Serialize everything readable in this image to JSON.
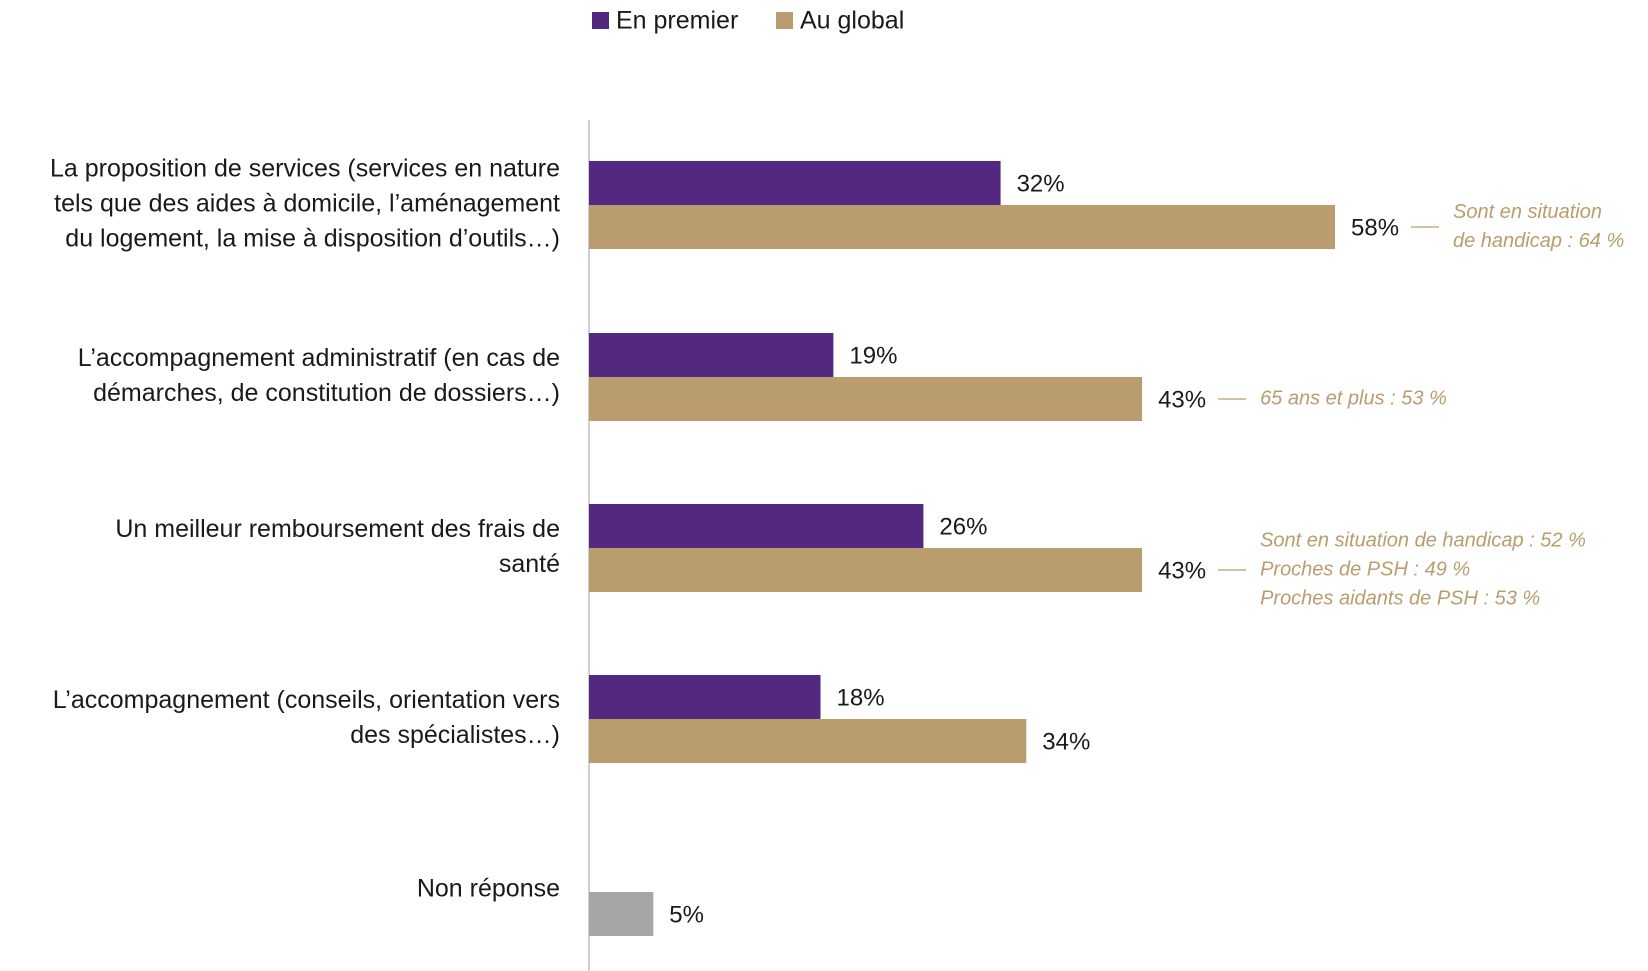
{
  "chart_data": {
    "type": "bar",
    "orientation": "horizontal",
    "legend": {
      "position": "top",
      "entries": [
        {
          "name": "En premier",
          "color": "#522880"
        },
        {
          "name": "Au global",
          "color": "#B99D6E"
        }
      ]
    },
    "categories": [
      {
        "label": "La proposition de services (services en nature tels que des aides à domicile, l’aménagement du logement, la mise à disposition d’outils…)",
        "lines": [
          "La proposition de services (services en nature",
          "tels que des aides à domicile, l’aménagement",
          "du logement, la mise à disposition d’outils…)"
        ],
        "values": {
          "En premier": 32,
          "Au global": 58
        },
        "value_labels": {
          "En premier": "32%",
          "Au global": "58%"
        },
        "note": {
          "lines": [
            "Sont en situation",
            "de handicap : 64 %"
          ]
        }
      },
      {
        "label": "L’accompagnement administratif (en cas de démarches, de constitution de dossiers…)",
        "lines": [
          "L’accompagnement administratif (en cas de",
          "démarches, de constitution de dossiers…)"
        ],
        "values": {
          "En premier": 19,
          "Au global": 43
        },
        "value_labels": {
          "En premier": "19%",
          "Au global": "43%"
        },
        "note": {
          "lines": [
            "65 ans et plus : 53 %"
          ]
        }
      },
      {
        "label": "Un meilleur remboursement des frais de santé",
        "lines": [
          "Un meilleur remboursement des frais de",
          "santé"
        ],
        "values": {
          "En premier": 26,
          "Au global": 43
        },
        "value_labels": {
          "En premier": "26%",
          "Au global": "43%"
        },
        "note": {
          "lines": [
            "Sont en situation de handicap : 52 %",
            "Proches de PSH : 49 %",
            "Proches aidants de PSH : 53 %"
          ]
        }
      },
      {
        "label": "L’accompagnement (conseils, orientation vers des spécialistes…)",
        "lines": [
          "L’accompagnement (conseils, orientation vers",
          "des spécialistes…)"
        ],
        "values": {
          "En premier": 18,
          "Au global": 34
        },
        "value_labels": {
          "En premier": "18%",
          "Au global": "34%"
        },
        "note": null
      }
    ],
    "non_response": {
      "label": "Non réponse",
      "value": 5,
      "value_label": "5%",
      "color": "#A6A6A6"
    },
    "note_color": "#B99D6E",
    "axis": {
      "x_range": [
        0,
        58
      ]
    }
  }
}
